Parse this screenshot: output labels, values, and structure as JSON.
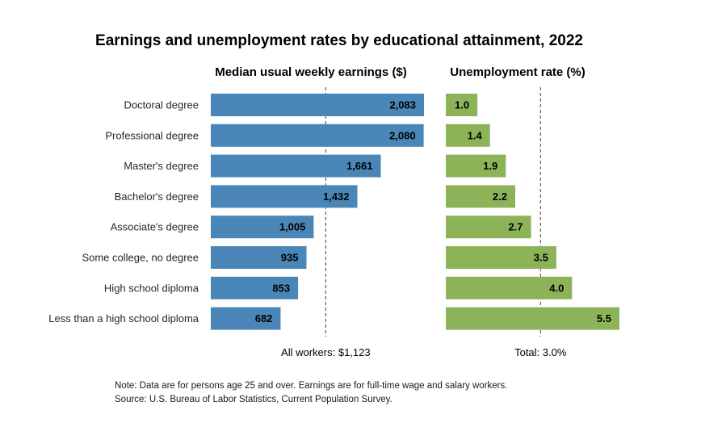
{
  "chart_data": {
    "type": "bar",
    "title": "Earnings and unemployment rates by educational attainment, 2022",
    "categories": [
      "Doctoral degree",
      "Professional degree",
      "Master's degree",
      "Bachelor's degree",
      "Associate's degree",
      "Some college, no degree",
      "High school diploma",
      "Less than a high school diploma"
    ],
    "panels": [
      {
        "subtitle": "Median usual weekly earnings ($)",
        "color": "#4a86b7",
        "values": [
          2083,
          2080,
          1661,
          1432,
          1005,
          935,
          853,
          682
        ],
        "value_labels": [
          "2,083",
          "2,080",
          "1,661",
          "1,432",
          "1,005",
          "935",
          "853",
          "682"
        ],
        "reference_value": 1123,
        "reference_label": "All workers: $1,123",
        "xlim": [
          0,
          2083
        ]
      },
      {
        "subtitle": "Unemployment rate (%)",
        "color": "#8db359",
        "values": [
          1.0,
          1.4,
          1.9,
          2.2,
          2.7,
          3.5,
          4.0,
          5.5
        ],
        "value_labels": [
          "1.0",
          "1.4",
          "1.9",
          "2.2",
          "2.7",
          "3.5",
          "4.0",
          "5.5"
        ],
        "reference_value": 3.0,
        "reference_label": "Total: 3.0%",
        "xlim": [
          0,
          5.5
        ]
      }
    ],
    "legend": "none",
    "grid": false
  },
  "notes": {
    "note": "Note: Data are for persons age 25 and over. Earnings are for full-time wage and salary workers.",
    "source": "Source: U.S. Bureau of Labor Statistics, Current Population Survey."
  }
}
